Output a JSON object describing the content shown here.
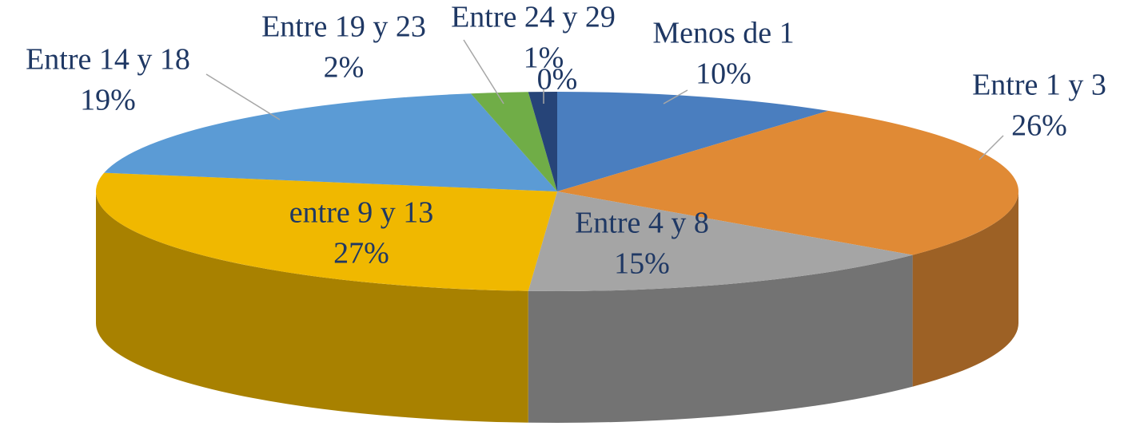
{
  "chart_data": {
    "type": "pie",
    "categories": [
      "Menos de 1",
      "Entre 1 y 3",
      "Entre 4 y 8",
      "entre 9 y 13",
      "Entre 14 y 18",
      "Entre 19 y 23",
      "Entre 24 y 29",
      null
    ],
    "values": [
      10,
      26,
      15,
      27,
      19,
      2,
      1,
      0
    ],
    "value_labels": [
      "10%",
      "26%",
      "15%",
      "27%",
      "19%",
      "2%",
      "1%",
      "0%"
    ],
    "colors": [
      "#4a7ebf",
      "#e08a35",
      "#a5a5a5",
      "#f0b800",
      "#5b9bd5",
      "#70ad47",
      "#264478",
      "#9e480e"
    ]
  }
}
